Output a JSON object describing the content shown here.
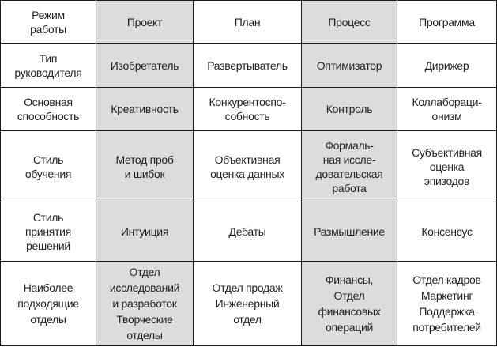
{
  "table": {
    "rows": [
      [
        "Режим\nработы",
        "Проект",
        "План",
        "Процесс",
        "Программа"
      ],
      [
        "Тип\nруководителя",
        "Изобретатель",
        "Развертыватель",
        "Оптимизатор",
        "Дирижер"
      ],
      [
        "Основная\nспособность",
        "Креативность",
        "Конкурентоспо-\nсобность",
        "Контроль",
        "Коллабораци-\nонизм"
      ],
      [
        "Стиль\nобучения",
        "Метод проб\nи шибок",
        "Объективная\nоценка данных",
        "Формаль-\nная иссле-\nдовательская\nработа",
        "Субъективная\nоценка\nэпизодов"
      ],
      [
        "Стиль\nпринятия\nрешений",
        "Интуиция",
        "Дебаты",
        "Размышление",
        "Консенсус"
      ],
      [
        "Наиболее\nподходящие\nотделы",
        "Отдел\nисследований\nи разработок\nТворческие\nотделы",
        "Отдел продаж\nИнженерный\nотдел",
        "Финансы,\nОтдел\nфинансовых\nопераций",
        "Отдел кадров\nМаркетинг\nПоддержка\nпотребителей"
      ]
    ],
    "shaded_columns": [
      1,
      3
    ],
    "shade_color": "#dcdcdc"
  }
}
